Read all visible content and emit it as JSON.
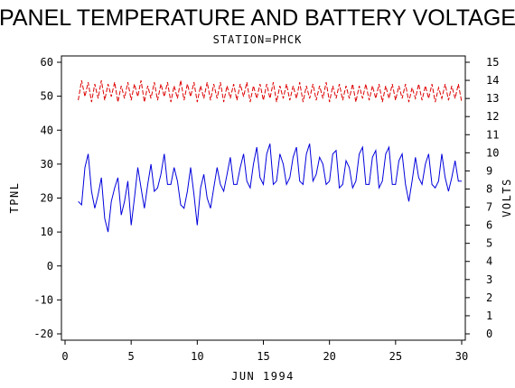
{
  "chart_data": {
    "type": "line",
    "title": "PANEL TEMPERATURE AND BATTERY VOLTAGE",
    "subtitle": "STATION=PHCK",
    "xlabel": "JUN 1994",
    "ylabel_left": "TPNL",
    "ylabel_right": "VOLTS",
    "xlim": [
      0,
      30
    ],
    "ylim_left": [
      -20,
      60
    ],
    "ylim_right": [
      0,
      15
    ],
    "x_ticks": [
      0,
      5,
      10,
      15,
      20,
      25,
      30
    ],
    "y_ticks_left": [
      -20,
      -10,
      0,
      10,
      20,
      30,
      40,
      50,
      60
    ],
    "y_ticks_right": [
      0,
      1,
      2,
      3,
      4,
      5,
      6,
      7,
      8,
      9,
      10,
      11,
      12,
      13,
      14,
      15
    ],
    "grid": false,
    "series": [
      {
        "axis": "left",
        "color": "#0000dd",
        "style": "solid",
        "x": [
          1.0,
          1.25,
          1.5,
          1.75,
          2.0,
          2.25,
          2.5,
          2.75,
          3.0,
          3.25,
          3.5,
          3.75,
          4.0,
          4.25,
          4.5,
          4.75,
          5.0,
          5.25,
          5.5,
          5.75,
          6.0,
          6.25,
          6.5,
          6.75,
          7.0,
          7.25,
          7.5,
          7.75,
          8.0,
          8.25,
          8.5,
          8.75,
          9.0,
          9.25,
          9.5,
          9.75,
          10.0,
          10.25,
          10.5,
          10.75,
          11.0,
          11.25,
          11.5,
          11.75,
          12.0,
          12.25,
          12.5,
          12.75,
          13.0,
          13.25,
          13.5,
          13.75,
          14.0,
          14.25,
          14.5,
          14.75,
          15.0,
          15.25,
          15.5,
          15.75,
          16.0,
          16.25,
          16.5,
          16.75,
          17.0,
          17.25,
          17.5,
          17.75,
          18.0,
          18.25,
          18.5,
          18.75,
          19.0,
          19.25,
          19.5,
          19.75,
          20.0,
          20.25,
          20.5,
          20.75,
          21.0,
          21.25,
          21.5,
          21.75,
          22.0,
          22.25,
          22.5,
          22.75,
          23.0,
          23.25,
          23.5,
          23.75,
          24.0,
          24.25,
          24.5,
          24.75,
          25.0,
          25.25,
          25.5,
          25.75,
          26.0,
          26.25,
          26.5,
          26.75,
          27.0,
          27.25,
          27.5,
          27.75,
          28.0,
          28.25,
          28.5,
          28.75,
          29.0,
          29.25,
          29.5,
          29.75,
          30.0
        ],
        "y": [
          19,
          18,
          29,
          33,
          22,
          17,
          21,
          26,
          14,
          10,
          19,
          23,
          26,
          15,
          19,
          25,
          12,
          20,
          29,
          23,
          17,
          24,
          30,
          22,
          23,
          27,
          33,
          24,
          24,
          29,
          25,
          18,
          17,
          22,
          29,
          21,
          12,
          23,
          27,
          20,
          17,
          23,
          29,
          24,
          22,
          27,
          32,
          24,
          24,
          29,
          33,
          25,
          23,
          30,
          35,
          26,
          24,
          33,
          36,
          24,
          25,
          33,
          30,
          24,
          26,
          32,
          35,
          25,
          24,
          33,
          36,
          25,
          27,
          32,
          30,
          24,
          25,
          33,
          34,
          23,
          24,
          31,
          29,
          23,
          25,
          33,
          35,
          24,
          24,
          32,
          34,
          23,
          25,
          33,
          35,
          24,
          24,
          31,
          33,
          24,
          19,
          25,
          32,
          26,
          24,
          30,
          33,
          24,
          23,
          25,
          33,
          26,
          22,
          26,
          31,
          25,
          25
        ]
      },
      {
        "axis": "right",
        "color": "#dd0000",
        "style": "dashed",
        "x": [
          1.0,
          1.25,
          1.5,
          1.75,
          2.0,
          2.25,
          2.5,
          2.75,
          3.0,
          3.25,
          3.5,
          3.75,
          4.0,
          4.25,
          4.5,
          4.75,
          5.0,
          5.25,
          5.5,
          5.75,
          6.0,
          6.25,
          6.5,
          6.75,
          7.0,
          7.25,
          7.5,
          7.75,
          8.0,
          8.25,
          8.5,
          8.75,
          9.0,
          9.25,
          9.5,
          9.75,
          10.0,
          10.25,
          10.5,
          10.75,
          11.0,
          11.25,
          11.5,
          11.75,
          12.0,
          12.25,
          12.5,
          12.75,
          13.0,
          13.25,
          13.5,
          13.75,
          14.0,
          14.25,
          14.5,
          14.75,
          15.0,
          15.25,
          15.5,
          15.75,
          16.0,
          16.25,
          16.5,
          16.75,
          17.0,
          17.25,
          17.5,
          17.75,
          18.0,
          18.25,
          18.5,
          18.75,
          19.0,
          19.25,
          19.5,
          19.75,
          20.0,
          20.25,
          20.5,
          20.75,
          21.0,
          21.25,
          21.5,
          21.75,
          22.0,
          22.25,
          22.5,
          22.75,
          23.0,
          23.25,
          23.5,
          23.75,
          24.0,
          24.25,
          24.5,
          24.75,
          25.0,
          25.25,
          25.5,
          25.75,
          26.0,
          26.25,
          26.5,
          26.75,
          27.0,
          27.25,
          27.5,
          27.75,
          28.0,
          28.25,
          28.5,
          28.75,
          29.0,
          29.25,
          29.5,
          29.75,
          30.0
        ],
        "y": [
          12.9,
          14.0,
          13.1,
          13.9,
          12.8,
          13.8,
          13.0,
          14.0,
          12.9,
          13.8,
          13.1,
          13.9,
          12.8,
          13.7,
          13.0,
          13.9,
          12.9,
          13.8,
          13.1,
          14.0,
          12.8,
          13.7,
          13.0,
          13.9,
          12.9,
          13.8,
          13.1,
          13.9,
          12.8,
          13.7,
          13.0,
          14.0,
          12.9,
          13.8,
          13.1,
          13.9,
          12.8,
          13.7,
          13.0,
          13.9,
          12.9,
          13.8,
          13.0,
          13.9,
          12.8,
          13.7,
          13.0,
          13.8,
          12.9,
          13.8,
          13.1,
          13.9,
          12.8,
          13.7,
          13.0,
          13.8,
          12.9,
          13.8,
          13.0,
          13.9,
          12.8,
          13.7,
          13.0,
          13.8,
          12.9,
          13.7,
          13.0,
          13.9,
          12.8,
          13.7,
          13.0,
          13.8,
          12.9,
          13.7,
          13.0,
          13.9,
          12.8,
          13.7,
          13.0,
          13.8,
          12.9,
          13.7,
          13.0,
          13.8,
          12.8,
          13.7,
          13.0,
          13.8,
          12.9,
          13.7,
          13.0,
          13.8,
          12.8,
          13.7,
          13.0,
          13.8,
          12.9,
          13.7,
          13.0,
          13.8,
          12.8,
          13.6,
          13.0,
          13.8,
          12.9,
          13.7,
          13.0,
          13.8,
          12.8,
          13.6,
          13.0,
          13.8,
          12.9,
          13.7,
          13.0,
          13.8,
          12.8
        ]
      }
    ]
  }
}
